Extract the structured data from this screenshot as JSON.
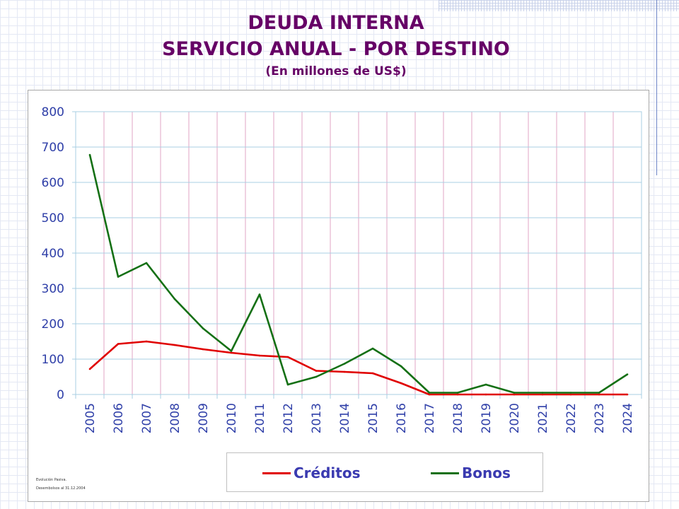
{
  "title": "DEUDA INTERNA",
  "subtitle": "SERVICIO ANUAL - POR DESTINO",
  "unit_note": "(En millones de US$)",
  "footnote_1": "Evolución Pasiva.",
  "footnote_2": "Desembolsos al 31.12.2004",
  "colors": {
    "title": "#660066",
    "axis_text": "#2f3fa8",
    "creditos": "#e00000",
    "bonos": "#157015",
    "h_grid": "#a8cfe3",
    "v_grid": "#e2a6c4"
  },
  "chart_data": {
    "type": "line",
    "categories": [
      "2005",
      "2006",
      "2007",
      "2008",
      "2009",
      "2010",
      "2011",
      "2012",
      "2013",
      "2014",
      "2015",
      "2016",
      "2017",
      "2018",
      "2019",
      "2020",
      "2021",
      "2022",
      "2023",
      "2024"
    ],
    "series": [
      {
        "name": "Créditos",
        "values": [
          72,
          143,
          150,
          140,
          128,
          118,
          110,
          106,
          67,
          64,
          60,
          32,
          0,
          0,
          0,
          0,
          0,
          0,
          0,
          0
        ]
      },
      {
        "name": "Bonos",
        "values": [
          678,
          333,
          372,
          270,
          187,
          123,
          283,
          28,
          50,
          87,
          130,
          80,
          5,
          5,
          28,
          5,
          5,
          5,
          5,
          57
        ]
      }
    ],
    "ylim": [
      0,
      800
    ],
    "yticks": [
      0,
      100,
      200,
      300,
      400,
      500,
      600,
      700,
      800
    ],
    "legend_position": "bottom",
    "grid": true
  }
}
